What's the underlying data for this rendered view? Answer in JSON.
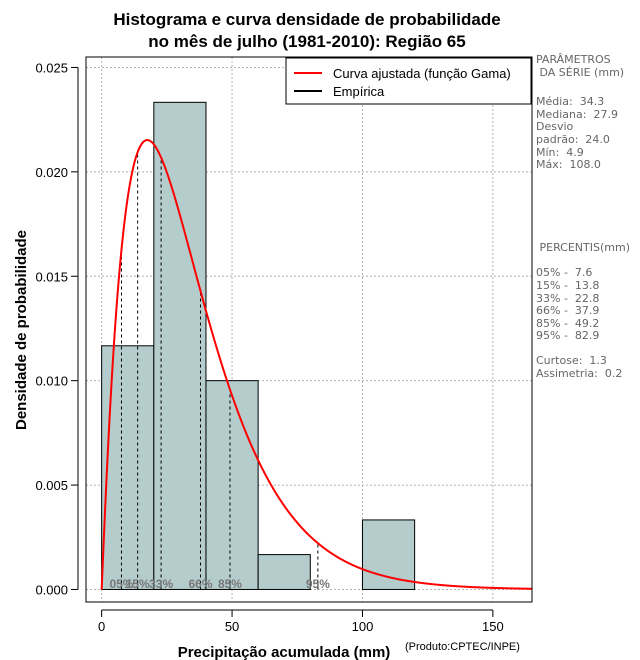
{
  "chart_data": {
    "type": "histogram",
    "title_line1": "Histograma e curva densidade de probabilidade",
    "title_line2": "no mês de julho (1981-2010): Região 65",
    "xlabel": "Precipitação acumulada (mm)",
    "xlabel_suffix": "(Produto:CPTEC/INPE)",
    "ylabel": "Densidade de probabilidade",
    "xlim": [
      -6,
      165
    ],
    "ylim": [
      -0.0006,
      0.0255
    ],
    "x_ticks": [
      0,
      50,
      100,
      150
    ],
    "x_tick_labels": [
      "0",
      "50",
      "100",
      "150"
    ],
    "y_ticks": [
      0.0,
      0.005,
      0.01,
      0.015,
      0.02,
      0.025
    ],
    "y_tick_labels": [
      "0.000",
      "0.005",
      "0.010",
      "0.015",
      "0.020",
      "0.025"
    ],
    "grid": true,
    "bins": [
      {
        "x0": 0,
        "x1": 20,
        "density": 0.01167
      },
      {
        "x0": 20,
        "x1": 40,
        "density": 0.02333
      },
      {
        "x0": 40,
        "x1": 60,
        "density": 0.01
      },
      {
        "x0": 60,
        "x1": 80,
        "density": 0.00167
      },
      {
        "x0": 80,
        "x1": 100,
        "density": 0.0
      },
      {
        "x0": 100,
        "x1": 120,
        "density": 0.00333
      }
    ],
    "gamma_fit": {
      "mean": 34.3,
      "sd": 24.0,
      "x_max": 165
    },
    "percentile_lines": [
      {
        "value": 7.6,
        "label": "05%"
      },
      {
        "value": 13.8,
        "label": "15%"
      },
      {
        "value": 22.8,
        "label": "33%"
      },
      {
        "value": 37.9,
        "label": "66%"
      },
      {
        "value": 49.2,
        "label": "85%"
      },
      {
        "value": 82.9,
        "label": "95%"
      }
    ],
    "legend": {
      "position": "top-right",
      "entries": [
        {
          "label": "Curva ajustada (função Gama)",
          "color": "#ff0000"
        },
        {
          "label": "Empírica",
          "color": "#000000"
        }
      ]
    },
    "colors": {
      "bar_fill": "#b4cccc",
      "curve": "#ff0000",
      "grid": "#b4b4b4",
      "percentile_text": "#777777"
    }
  },
  "sidebar": {
    "params_title": "PARÂMETROS\n DA SÉRIE (mm)",
    "params": "Média:  34.3\nMediana:  27.9\nDesvio\npadrão:  24.0\nMín:  4.9\nMáx:  108.0",
    "percentis_title": " PERCENTIS(mm)",
    "percentis": "05% -  7.6\n15% -  13.8\n33% -  22.8\n66% -  37.9\n85% -  49.2\n95% -  82.9",
    "stats": "Curtose:  1.3\nAssimetria:  0.2"
  }
}
